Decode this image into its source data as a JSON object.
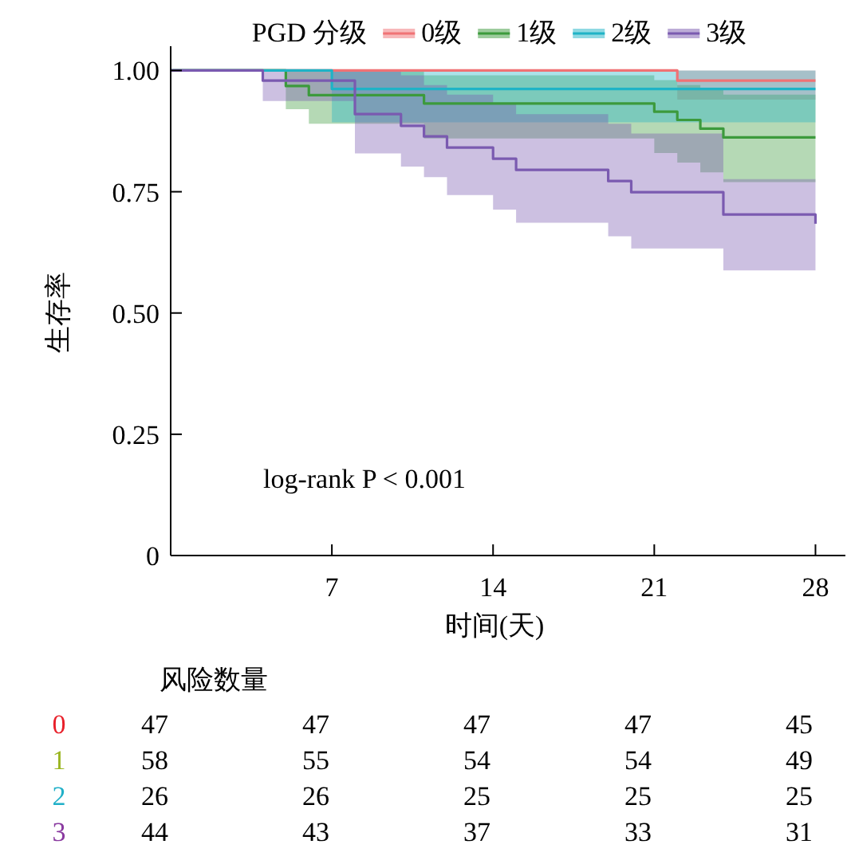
{
  "chart_data": [
    {
      "type": "step",
      "legend_title": "PGD 分级",
      "legend": "top",
      "xlabel": "时间(天)",
      "ylabel": "生存率",
      "xlim": [
        0,
        29.3
      ],
      "xticks": [
        7,
        14,
        21,
        28
      ],
      "ylim": [
        0,
        1.05
      ],
      "yticks": [
        0,
        {
          "value": 0.25,
          "label": "0.25"
        },
        {
          "value": 0.5,
          "label": "0.50"
        },
        {
          "value": 0.75,
          "label": "0.75"
        },
        {
          "value": 1,
          "label": "1.00"
        }
      ],
      "grid": false,
      "annotations": [
        "log-rank P < 0.001"
      ],
      "series": [
        {
          "name": "0级",
          "color": "#f07275",
          "x": [
            0,
            22,
            28
          ],
          "values": [
            1,
            0.979,
            0.979
          ],
          "lower": [
            1,
            0.94,
            0.94
          ],
          "upper": [
            1,
            1,
            1
          ]
        },
        {
          "name": "1级",
          "color": "#3c9a3c",
          "x": [
            0,
            5,
            6,
            11,
            21,
            22,
            23,
            24,
            28
          ],
          "values": [
            1,
            0.968,
            0.949,
            0.932,
            0.915,
            0.898,
            0.88,
            0.862,
            0.862
          ],
          "lower": [
            1,
            0.92,
            0.89,
            0.86,
            0.83,
            0.81,
            0.79,
            0.77,
            0.77
          ],
          "upper": [
            1,
            1,
            1,
            0.99,
            0.98,
            0.97,
            0.96,
            0.95,
            0.95
          ]
        },
        {
          "name": "2级",
          "color": "#1fb3c6",
          "x": [
            0,
            7,
            28
          ],
          "values": [
            1,
            0.962,
            0.962
          ],
          "lower": [
            1,
            0.893,
            0.893
          ],
          "upper": [
            1,
            1,
            1
          ]
        },
        {
          "name": "3级",
          "color": "#7a5ab0",
          "x": [
            0,
            4,
            8,
            10,
            11,
            12,
            14,
            15,
            19,
            20,
            24,
            28
          ],
          "values": [
            1,
            0.979,
            0.91,
            0.886,
            0.864,
            0.841,
            0.818,
            0.795,
            0.772,
            0.749,
            0.703,
            0.684
          ],
          "lower": [
            1,
            0.937,
            0.829,
            0.802,
            0.78,
            0.743,
            0.713,
            0.686,
            0.658,
            0.633,
            0.588,
            0.588
          ],
          "upper": [
            1,
            1,
            1,
            0.99,
            0.97,
            0.95,
            0.93,
            0.91,
            0.89,
            0.87,
            0.776,
            0.776
          ]
        }
      ]
    },
    {
      "type": "heatmap",
      "title": "风险数量",
      "data_labels": true,
      "categories": [
        null,
        null,
        null,
        null,
        null
      ],
      "y_categories": [
        "0",
        "1",
        "2",
        "3"
      ],
      "colors": [
        "#e8202a",
        "#9ab520",
        "#20b0c8",
        "#8a3aa0"
      ],
      "cells": [
        [
          47,
          47,
          47,
          47,
          45
        ],
        [
          58,
          55,
          54,
          54,
          49
        ],
        [
          26,
          26,
          25,
          25,
          25
        ],
        [
          44,
          43,
          37,
          33,
          31
        ]
      ]
    }
  ]
}
